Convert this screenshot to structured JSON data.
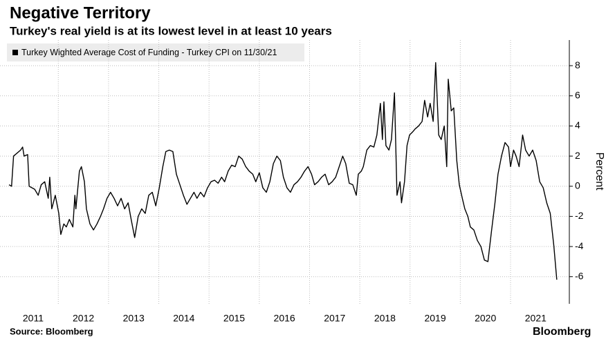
{
  "chart_data": {
    "type": "line",
    "title": "Negative Territory",
    "subtitle": "Turkey's real yield is at its lowest level in at least 10 years",
    "y_label": "Percent",
    "source": "Source: Bloomberg",
    "brand": "Bloomberg",
    "x": [
      2011.02,
      2011.07,
      2011.11,
      2011.25,
      2011.29,
      2011.32,
      2011.39,
      2011.42,
      2011.53,
      2011.6,
      2011.66,
      2011.73,
      2011.8,
      2011.83,
      2011.87,
      2011.94,
      2012.01,
      2012.05,
      2012.11,
      2012.16,
      2012.22,
      2012.29,
      2012.33,
      2012.35,
      2012.42,
      2012.46,
      2012.52,
      2012.56,
      2012.63,
      2012.7,
      2012.77,
      2012.84,
      2012.9,
      2012.97,
      2013.04,
      2013.11,
      2013.18,
      2013.25,
      2013.32,
      2013.39,
      2013.45,
      2013.52,
      2013.59,
      2013.66,
      2013.73,
      2013.8,
      2013.87,
      2013.94,
      2014.01,
      2014.08,
      2014.14,
      2014.21,
      2014.28,
      2014.35,
      2014.42,
      2014.49,
      2014.56,
      2014.63,
      2014.7,
      2014.76,
      2014.83,
      2014.9,
      2014.97,
      2015.04,
      2015.11,
      2015.18,
      2015.25,
      2015.31,
      2015.38,
      2015.45,
      2015.52,
      2015.59,
      2015.66,
      2015.73,
      2015.8,
      2015.87,
      2015.93,
      2016.0,
      2016.07,
      2016.14,
      2016.21,
      2016.28,
      2016.35,
      2016.42,
      2016.48,
      2016.55,
      2016.62,
      2016.69,
      2016.76,
      2016.83,
      2016.9,
      2016.97,
      2017.04,
      2017.1,
      2017.17,
      2017.24,
      2017.31,
      2017.38,
      2017.45,
      2017.52,
      2017.59,
      2017.66,
      2017.72,
      2017.79,
      2017.86,
      2017.93,
      2017.97,
      2018.03,
      2018.07,
      2018.14,
      2018.21,
      2018.28,
      2018.34,
      2018.41,
      2018.45,
      2018.48,
      2018.52,
      2018.58,
      2018.63,
      2018.69,
      2018.74,
      2018.8,
      2018.83,
      2018.89,
      2018.94,
      2018.99,
      2019.05,
      2019.1,
      2019.17,
      2019.24,
      2019.29,
      2019.35,
      2019.4,
      2019.46,
      2019.51,
      2019.57,
      2019.62,
      2019.68,
      2019.73,
      2019.76,
      2019.82,
      2019.87,
      2019.93,
      2019.98,
      2020.04,
      2020.09,
      2020.15,
      2020.2,
      2020.27,
      2020.34,
      2020.41,
      2020.48,
      2020.55,
      2020.62,
      2020.69,
      2020.75,
      2020.82,
      2020.89,
      2020.96,
      2021.0,
      2021.06,
      2021.11,
      2021.17,
      2021.24,
      2021.3,
      2021.37,
      2021.44,
      2021.51,
      2021.58,
      2021.65,
      2021.72,
      2021.79,
      2021.86,
      2021.92
    ],
    "series": [
      {
        "name": "Turkey Wighted Average Cost of Funding - Turkey CPI on 11/30/21",
        "color": "#000000",
        "values": [
          0.1,
          0.0,
          2.0,
          2.4,
          2.6,
          2.0,
          2.1,
          0.0,
          -0.2,
          -0.6,
          0.1,
          0.3,
          -0.8,
          0.6,
          -1.5,
          -0.6,
          -1.8,
          -3.2,
          -2.5,
          -2.7,
          -2.2,
          -2.7,
          -0.6,
          -1.5,
          1.0,
          1.3,
          0.3,
          -1.5,
          -2.5,
          -2.9,
          -2.5,
          -2.0,
          -1.5,
          -0.8,
          -0.4,
          -0.8,
          -1.3,
          -0.8,
          -1.5,
          -1.1,
          -2.2,
          -3.4,
          -2.0,
          -1.5,
          -1.8,
          -0.6,
          -0.4,
          -1.3,
          -0.1,
          1.3,
          2.3,
          2.4,
          2.3,
          0.8,
          0.1,
          -0.6,
          -1.2,
          -0.8,
          -0.4,
          -0.8,
          -0.4,
          -0.7,
          -0.1,
          0.3,
          0.4,
          0.2,
          0.6,
          0.3,
          1.0,
          1.4,
          1.3,
          2.0,
          1.8,
          1.3,
          1.0,
          0.8,
          0.3,
          0.9,
          -0.1,
          -0.4,
          0.3,
          1.5,
          2.0,
          1.7,
          0.6,
          -0.1,
          -0.4,
          0.1,
          0.3,
          0.6,
          1.0,
          1.3,
          0.8,
          0.1,
          0.3,
          0.6,
          0.8,
          0.1,
          0.3,
          0.6,
          1.3,
          2.0,
          1.5,
          0.2,
          0.1,
          -0.6,
          0.8,
          1.0,
          1.3,
          2.4,
          2.7,
          2.6,
          3.4,
          5.5,
          3.1,
          5.6,
          2.7,
          2.4,
          3.1,
          6.2,
          -0.6,
          0.3,
          -1.1,
          0.3,
          2.7,
          3.4,
          3.6,
          3.8,
          4.0,
          4.3,
          5.7,
          4.6,
          5.5,
          4.3,
          8.2,
          3.4,
          3.1,
          4.0,
          1.3,
          7.1,
          5.0,
          5.2,
          1.7,
          0.1,
          -0.8,
          -1.5,
          -2.0,
          -2.7,
          -2.9,
          -3.6,
          -4.0,
          -4.9,
          -5.0,
          -3.0,
          -1.1,
          0.8,
          2.0,
          2.9,
          2.6,
          1.3,
          2.4,
          2.0,
          1.3,
          3.4,
          2.4,
          2.0,
          2.4,
          1.7,
          0.3,
          -0.1,
          -1.1,
          -1.8,
          -3.9,
          -6.2
        ]
      }
    ],
    "xlim": [
      2010.84,
      2022.17
    ],
    "xticks": [
      {
        "value": 2011.5,
        "label": "2011"
      },
      {
        "value": 2012.5,
        "label": "2012"
      },
      {
        "value": 2013.5,
        "label": "2013"
      },
      {
        "value": 2014.5,
        "label": "2014"
      },
      {
        "value": 2015.5,
        "label": "2015"
      },
      {
        "value": 2016.5,
        "label": "2016"
      },
      {
        "value": 2017.5,
        "label": "2017"
      },
      {
        "value": 2018.5,
        "label": "2018"
      },
      {
        "value": 2019.5,
        "label": "2019"
      },
      {
        "value": 2020.5,
        "label": "2020"
      },
      {
        "value": 2021.5,
        "label": "2021"
      }
    ],
    "xgrid": [
      2012,
      2013,
      2014,
      2015,
      2016,
      2017,
      2018,
      2019,
      2020,
      2021
    ],
    "ylim": [
      -7.8,
      9.7
    ],
    "yticks": [
      -6,
      -4,
      -2,
      0,
      2,
      4,
      6,
      8
    ],
    "grid": true
  }
}
